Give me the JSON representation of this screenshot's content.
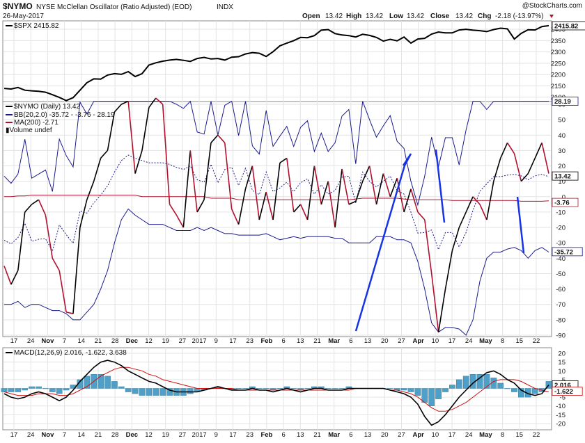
{
  "header": {
    "symbol": "$NYMO",
    "name": "NYSE McClellan Oscillator (Ratio Adjusted) (EOD)",
    "exchange": "INDX",
    "date": "26-May-2017",
    "open_label": "Open",
    "open": "13.42",
    "high_label": "High",
    "high": "13.42",
    "low_label": "Low",
    "low": "13.42",
    "close_label": "Close",
    "close": "13.42",
    "chg_label": "Chg",
    "chg": "-2.18 (-13.97%)",
    "watermark": "@StockCharts.com"
  },
  "colors": {
    "price": "#000000",
    "bb": "#1a1a8c",
    "ma": "#b0102e",
    "annotation": "#1633e6",
    "hist": "#4ea0c8",
    "macd": "#000000",
    "signal": "#d01010"
  },
  "chart_data": [
    {
      "type": "line",
      "title": "$SPX 2415.82",
      "last_value": "2415.82",
      "ylim": [
        2090,
        2425
      ],
      "y_ticks": [
        "2400",
        "2350",
        "2300",
        "2250",
        "2200",
        "2150",
        "2100"
      ],
      "series": [
        {
          "name": "$SPX",
          "values": [
            2139,
            2136,
            2143,
            2131,
            2128,
            2126,
            2122,
            2111,
            2099,
            2085,
            2098,
            2131,
            2164,
            2181,
            2180,
            2198,
            2204,
            2201,
            2213,
            2191,
            2204,
            2242,
            2252,
            2259,
            2264,
            2267,
            2263,
            2258,
            2271,
            2276,
            2269,
            2271,
            2264,
            2277,
            2279,
            2291,
            2297,
            2294,
            2280,
            2301,
            2327,
            2339,
            2350,
            2364,
            2363,
            2372,
            2396,
            2399,
            2381,
            2375,
            2372,
            2366,
            2378,
            2373,
            2364,
            2348,
            2356,
            2349,
            2366,
            2339,
            2357,
            2360,
            2379,
            2388,
            2384,
            2384,
            2397,
            2400,
            2396,
            2394,
            2390,
            2399,
            2405,
            2402,
            2357,
            2382,
            2398,
            2397,
            2412,
            2416
          ]
        }
      ]
    },
    {
      "type": "line",
      "title": "$NYMO (Daily) 13.42",
      "ylim": [
        -90,
        60
      ],
      "y_ticks": [
        "60",
        "50",
        "40",
        "30",
        "20",
        "10",
        "0",
        "-10",
        "-20",
        "-30",
        "-40",
        "-50",
        "-60",
        "-70",
        "-80",
        "-90"
      ],
      "x_ticks": [
        "17",
        "24",
        "Nov",
        "7",
        "14",
        "21",
        "28",
        "Dec",
        "12",
        "19",
        "27",
        "2017",
        "9",
        "17",
        "23",
        "Feb",
        "6",
        "13",
        "21",
        "Mar",
        "6",
        "13",
        "20",
        "27",
        "Apr",
        "10",
        "17",
        "24",
        "May",
        "8",
        "15",
        "22"
      ],
      "value_labels": {
        "upper_bb": "28.19",
        "price": "13.42",
        "ma": "-3.76",
        "lower_bb": "-35.72"
      },
      "series": [
        {
          "name": "$NYMO (Daily) 13.42",
          "values": [
            -45,
            -57,
            -48,
            -10,
            -5,
            -2,
            -12,
            -40,
            -48,
            -75,
            -76,
            -20,
            -2,
            10,
            25,
            30,
            55,
            60,
            62,
            15,
            30,
            58,
            64,
            60,
            -5,
            -12,
            -20,
            30,
            -10,
            -2,
            35,
            40,
            35,
            -8,
            -18,
            5,
            20,
            -15,
            3,
            -15,
            22,
            25,
            -10,
            -5,
            -15,
            20,
            -5,
            10,
            -20,
            18,
            -5,
            -3,
            10,
            20,
            -5,
            15,
            0,
            12,
            -10,
            5,
            -10,
            -15,
            -50,
            -88,
            -60,
            -35,
            -20,
            -10,
            0,
            -5,
            -15,
            10,
            25,
            35,
            28,
            10,
            15,
            25,
            35,
            15
          ]
        },
        {
          "name": "BB(20,2.0) -35.72 - -3.76 - 28.19",
          "values": [
            -70,
            -70,
            -68,
            -72,
            -70,
            -70,
            -72,
            -74,
            -74,
            -76,
            -80,
            -80,
            -75,
            -70,
            -60,
            -48,
            -30,
            -15,
            -8,
            -12,
            -15,
            -18,
            -18,
            -18,
            -20,
            -22,
            -22,
            -22,
            -20,
            -22,
            -20,
            -22,
            -24,
            -24,
            -25,
            -25,
            -25,
            -25,
            -24,
            -26,
            -28,
            -27,
            -26,
            -27,
            -26,
            -26,
            -26,
            -26,
            -27,
            -27,
            -30,
            -30,
            -30,
            -30,
            -26,
            -26,
            -26,
            -28,
            -28,
            -30,
            -42,
            -60,
            -82,
            -88,
            -85,
            -85,
            -86,
            -90,
            -80,
            -55,
            -40,
            -36,
            -36,
            -34,
            -33,
            -35,
            -40,
            -35,
            -33,
            -36
          ]
        },
        {
          "name": "MA(200) -2.71",
          "values": [
            0,
            0,
            0.5,
            0.5,
            1,
            1,
            1,
            1,
            1,
            1,
            1,
            1,
            1,
            1,
            1,
            1,
            1,
            1,
            1,
            1,
            0,
            0,
            0,
            0,
            0,
            0,
            0,
            0,
            0,
            0,
            -1,
            -1,
            -1,
            -1,
            -2,
            -2,
            -2,
            -2,
            -2,
            -2,
            -2,
            -2,
            -2,
            -2,
            -2,
            -2,
            -2,
            -2,
            -2,
            -2,
            -2,
            -1.5,
            -1,
            -1,
            -1,
            -1,
            -1,
            -1,
            -1.5,
            -2,
            -2,
            -2,
            -2,
            -2,
            -2,
            -2.5,
            -2.5,
            -2.5,
            -2.5,
            -2.5,
            -2.5,
            -2.5,
            -2.5,
            -2.5,
            -2.5,
            -3,
            -3,
            -3,
            -3,
            -2.7
          ]
        }
      ]
    },
    {
      "type": "line",
      "title": "MACD(12,26,9) 2.016, -1.622, 3.638",
      "ylim": [
        -22,
        22
      ],
      "y_ticks": [
        "20",
        "15",
        "10",
        "5",
        "0",
        "-5",
        "-10",
        "-15",
        "-20"
      ],
      "value_labels": {
        "macd": "2.016",
        "signal": "-1.622"
      },
      "series": [
        {
          "name": "MACD",
          "values": [
            -3,
            -5,
            -6,
            -5,
            -3,
            -2,
            -3,
            -5,
            -7,
            -5,
            -1,
            4,
            8,
            12,
            15,
            16,
            15,
            13,
            10,
            8,
            6,
            4,
            3,
            1,
            -1,
            -2,
            -2,
            -2,
            -2,
            -1,
            0,
            1,
            0,
            -1,
            -1,
            -1,
            0,
            -1,
            -1,
            -2,
            -1,
            0,
            -1,
            -2,
            -1,
            0,
            0,
            -1,
            -1,
            -1,
            0,
            0,
            0,
            0,
            0,
            0,
            -1,
            -2,
            -3,
            -5,
            -9,
            -16,
            -21,
            -19,
            -15,
            -10,
            -5,
            -1,
            3,
            6,
            9,
            10,
            8,
            5,
            3,
            -1,
            -3,
            -4,
            -3,
            2
          ]
        },
        {
          "name": "Signal",
          "values": [
            -2,
            -3,
            -4,
            -4,
            -4,
            -3,
            -3,
            -3,
            -4,
            -4,
            -3,
            -1,
            1,
            4,
            7,
            9,
            11,
            12,
            12,
            11,
            10,
            8,
            7,
            5,
            4,
            3,
            2,
            1,
            0,
            0,
            0,
            0,
            0,
            0,
            -1,
            -1,
            -1,
            -1,
            -1,
            -1,
            -1,
            -1,
            -1,
            -1,
            -1,
            -1,
            -1,
            -1,
            -1,
            -1,
            -1,
            0,
            0,
            0,
            0,
            0,
            -1,
            -1,
            -2,
            -3,
            -5,
            -8,
            -11,
            -13,
            -13,
            -12,
            -10,
            -8,
            -5,
            -2,
            1,
            4,
            5,
            5,
            5,
            4,
            2,
            0,
            -1,
            -2
          ]
        },
        {
          "name": "Histogram",
          "values": [
            -2,
            -2,
            -2,
            -1,
            1,
            1,
            0,
            -2,
            -3,
            -1,
            2,
            5,
            7,
            8,
            8,
            7,
            4,
            1,
            -2,
            -3,
            -4,
            -4,
            -4,
            -4,
            -4,
            -4,
            -4,
            -3,
            -2,
            -1,
            0,
            1,
            0,
            -1,
            0,
            0,
            1,
            0,
            0,
            -1,
            0,
            1,
            0,
            -1,
            0,
            1,
            1,
            0,
            0,
            0,
            1,
            0,
            0,
            0,
            0,
            0,
            0,
            -1,
            -1,
            -2,
            -4,
            -8,
            -10,
            -6,
            -2,
            2,
            5,
            7,
            8,
            8,
            8,
            6,
            3,
            0,
            -2,
            -5,
            -5,
            -3,
            -2,
            4
          ]
        }
      ]
    }
  ]
}
